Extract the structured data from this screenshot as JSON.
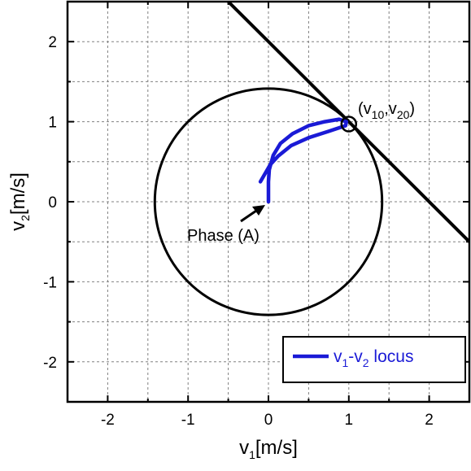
{
  "chart_data": {
    "type": "line",
    "title": "",
    "xlabel": {
      "main": "v",
      "sub": "1",
      "unit": "[m/s]"
    },
    "ylabel": {
      "main": "v",
      "sub": "2",
      "unit": "[m/s]"
    },
    "xlim": [
      -2.5,
      2.5
    ],
    "ylim": [
      -2.5,
      2.5
    ],
    "xticks": [
      -2,
      -1,
      0,
      1,
      2
    ],
    "yticks": [
      -2,
      -1,
      0,
      1,
      2
    ],
    "xtick_labels": [
      "-2",
      "-1",
      "0",
      "1",
      "2"
    ],
    "ytick_labels": [
      "-2",
      "-1",
      "0",
      "1",
      "2"
    ],
    "grid": true,
    "grid_step": 0.5,
    "legend_position": "bottom-right",
    "colors": {
      "locus": "#1a1ad6",
      "curves": "#000000",
      "grid": "#808080"
    },
    "series": [
      {
        "name": "v1-v2 locus",
        "legend": {
          "a": "v",
          "a_sub": "1",
          "mid": "-v",
          "b_sub": "2",
          "rest": " locus"
        },
        "points": [
          [
            0,
            0
          ],
          [
            0,
            0.25
          ],
          [
            0.01,
            0.4
          ],
          [
            0.06,
            0.58
          ],
          [
            0.15,
            0.73
          ],
          [
            0.3,
            0.85
          ],
          [
            0.5,
            0.95
          ],
          [
            0.7,
            1.0
          ],
          [
            0.88,
            1.03
          ],
          [
            0.97,
            1.0
          ],
          [
            0.96,
            0.95
          ],
          [
            0.75,
            0.88
          ],
          [
            0.5,
            0.8
          ],
          [
            0.28,
            0.7
          ],
          [
            0.12,
            0.57
          ],
          [
            0.02,
            0.46
          ],
          [
            -0.1,
            0.25
          ]
        ]
      }
    ],
    "constraint_circle": {
      "radius": 1.414
    },
    "constraint_line": {
      "from": [
        -0.5,
        2.5
      ],
      "to": [
        2.5,
        -0.5
      ]
    },
    "marker_point": {
      "x": 1.0,
      "y": 0.97,
      "label": {
        "open": "(",
        "a": "v",
        "a_sub": "10",
        "mid": ",v",
        "b_sub": "20",
        "close": ")"
      }
    },
    "annotation": {
      "text": "Phase (A)",
      "target": [
        0,
        0
      ]
    }
  }
}
